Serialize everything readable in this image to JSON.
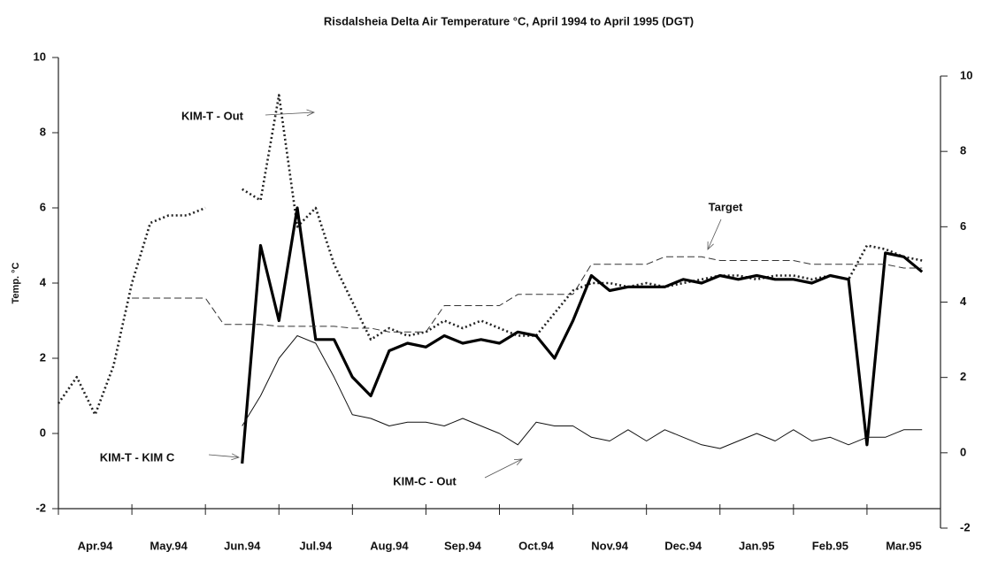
{
  "chart_data": {
    "type": "line",
    "title": "Risdalsheia Delta Air Temperature °C, April 1994 to April 1995 (DGT)",
    "y_label": "Temp. °C",
    "x": [
      0,
      0.25,
      0.5,
      0.75,
      1,
      1.25,
      1.5,
      1.75,
      2,
      2.25,
      2.5,
      2.75,
      3,
      3.25,
      3.5,
      3.75,
      4,
      4.25,
      4.5,
      4.75,
      5,
      5.25,
      5.5,
      5.75,
      6,
      6.25,
      6.5,
      6.75,
      7,
      7.25,
      7.5,
      7.75,
      8,
      8.25,
      8.5,
      8.75,
      9,
      9.25,
      9.5,
      9.75,
      10,
      10.25,
      10.5,
      10.75,
      11,
      11.25,
      11.5,
      11.75
    ],
    "xlim": [
      0,
      12
    ],
    "xticks": [
      {
        "value": 0,
        "label": "Apr.94"
      },
      {
        "value": 1,
        "label": "May.94"
      },
      {
        "value": 2,
        "label": "Jun.94"
      },
      {
        "value": 3,
        "label": "Jul.94"
      },
      {
        "value": 4,
        "label": "Aug.94"
      },
      {
        "value": 5,
        "label": "Sep.94"
      },
      {
        "value": 6,
        "label": "Oct.94"
      },
      {
        "value": 7,
        "label": "Nov.94"
      },
      {
        "value": 8,
        "label": "Dec.94"
      },
      {
        "value": 9,
        "label": "Jan.95"
      },
      {
        "value": 10,
        "label": "Feb.95"
      },
      {
        "value": 11,
        "label": "Mar.95"
      }
    ],
    "ylim": [
      -2,
      10
    ],
    "yticks": [
      -2,
      0,
      2,
      4,
      6,
      8,
      10
    ],
    "y2lim": [
      -2,
      10
    ],
    "y2ticks": [
      -2,
      0,
      2,
      4,
      6,
      8,
      10
    ],
    "series": [
      {
        "name": "KIM-T -  Out",
        "color": "#222",
        "style": "dotted",
        "values": [
          0.8,
          1.5,
          0.5,
          1.8,
          4.0,
          5.6,
          5.8,
          5.8,
          6.0,
          null,
          6.5,
          6.2,
          9.0,
          5.5,
          6.0,
          4.5,
          3.5,
          2.5,
          2.8,
          2.6,
          2.7,
          3.0,
          2.8,
          3.0,
          2.8,
          2.6,
          2.6,
          3.2,
          3.8,
          4.0,
          4.0,
          3.9,
          4.0,
          3.9,
          4.0,
          4.1,
          4.2,
          4.2,
          4.1,
          4.2,
          4.2,
          4.1,
          4.2,
          4.1,
          5.0,
          4.9,
          4.7,
          4.6
        ]
      },
      {
        "name": "KIM-T - KIM C",
        "color": "#000",
        "style": "thick",
        "values": [
          null,
          null,
          null,
          null,
          null,
          null,
          null,
          null,
          null,
          null,
          -0.8,
          5.0,
          3.0,
          6.0,
          2.5,
          2.5,
          1.5,
          1.0,
          2.2,
          2.4,
          2.3,
          2.6,
          2.4,
          2.5,
          2.4,
          2.7,
          2.6,
          2.0,
          3.0,
          4.2,
          3.8,
          3.9,
          3.9,
          3.9,
          4.1,
          4.0,
          4.2,
          4.1,
          4.2,
          4.1,
          4.1,
          4.0,
          4.2,
          4.1,
          -0.3,
          4.8,
          4.7,
          4.3
        ]
      },
      {
        "name": "KIM-C - Out",
        "color": "#111",
        "style": "thin",
        "values": [
          null,
          null,
          null,
          null,
          null,
          null,
          null,
          null,
          null,
          null,
          0.2,
          1.0,
          2.0,
          2.6,
          2.4,
          1.5,
          0.5,
          0.4,
          0.2,
          0.3,
          0.3,
          0.2,
          0.4,
          0.2,
          0.0,
          -0.3,
          0.3,
          0.2,
          0.2,
          -0.1,
          -0.2,
          0.1,
          -0.2,
          0.1,
          -0.1,
          -0.3,
          -0.4,
          -0.2,
          0.0,
          -0.2,
          0.1,
          -0.2,
          -0.1,
          -0.3,
          -0.1,
          -0.1,
          0.1,
          0.1
        ]
      },
      {
        "name": "Target",
        "color": "#333",
        "style": "dashed",
        "values": [
          null,
          null,
          null,
          null,
          3.6,
          3.6,
          3.6,
          3.6,
          3.6,
          2.9,
          2.9,
          2.9,
          2.85,
          2.85,
          2.85,
          2.85,
          2.8,
          2.8,
          2.7,
          2.7,
          2.7,
          3.4,
          3.4,
          3.4,
          3.4,
          3.7,
          3.7,
          3.7,
          3.7,
          4.5,
          4.5,
          4.5,
          4.5,
          4.7,
          4.7,
          4.7,
          4.6,
          4.6,
          4.6,
          4.6,
          4.6,
          4.5,
          4.5,
          4.5,
          4.5,
          4.5,
          4.4,
          4.4
        ]
      }
    ]
  }
}
